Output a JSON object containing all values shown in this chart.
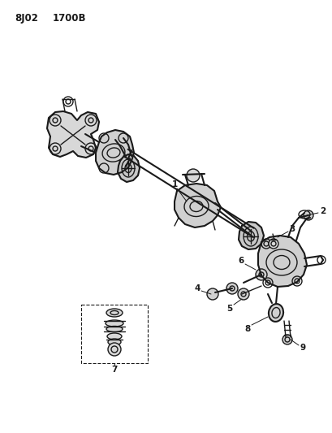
{
  "title_line1": "8J02",
  "title_line2": "1700B",
  "background_color": "#ffffff",
  "line_color": "#1a1a1a",
  "figsize": [
    4.1,
    5.33
  ],
  "dpi": 100,
  "header_fontsize": 8.5,
  "label_fontsize": 7.5
}
